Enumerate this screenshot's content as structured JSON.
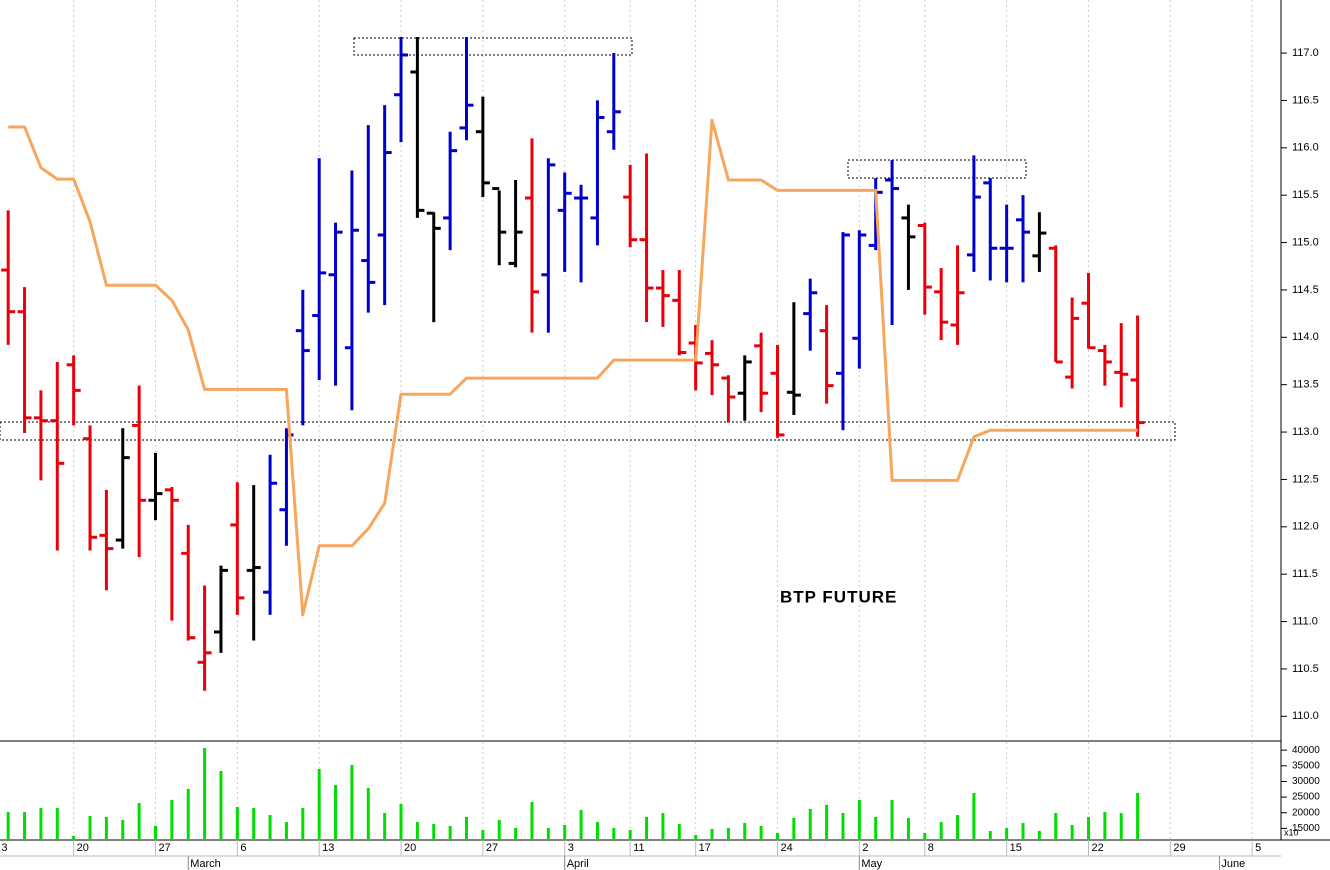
{
  "chart_data": [
    {
      "type": "ohlc",
      "annotation": "BTP FUTURE",
      "x": [
        0,
        1,
        2,
        3,
        4,
        5,
        6,
        7,
        8,
        9,
        10,
        11,
        12,
        13,
        14,
        15,
        16,
        17,
        18,
        19,
        20,
        21,
        22,
        23,
        24,
        25,
        26,
        27,
        28,
        29,
        30,
        31,
        32,
        33,
        34,
        35,
        36,
        37,
        38,
        39,
        40,
        41,
        42,
        43,
        44,
        45,
        46,
        47,
        48,
        49,
        50,
        51,
        52,
        53,
        54,
        55,
        56,
        57,
        58,
        59,
        60,
        61,
        62,
        63,
        64,
        65,
        66,
        67,
        68,
        69
      ],
      "open": [
        114.71,
        114.27,
        113.15,
        113.12,
        113.71,
        112.93,
        111.91,
        111.86,
        113.07,
        112.28,
        112.39,
        111.72,
        110.57,
        110.89,
        112.02,
        111.54,
        111.31,
        112.18,
        114.07,
        114.23,
        114.66,
        113.89,
        114.81,
        115.08,
        116.56,
        116.8,
        115.31,
        115.26,
        116.21,
        116.17,
        115.57,
        114.78,
        115.47,
        114.66,
        115.34,
        115.47,
        115.26,
        116.17,
        115.48,
        115.03,
        114.52,
        114.39,
        113.94,
        113.83,
        113.57,
        113.41,
        113.91,
        113.62,
        113.42,
        114.25,
        114.07,
        113.62,
        113.99,
        114.97,
        115.66,
        115.26,
        115.18,
        114.48,
        114.13,
        114.87,
        115.63,
        114.94,
        115.24,
        114.86,
        114.94,
        113.58,
        114.36,
        113.86,
        113.63,
        113.55
      ],
      "high": [
        115.34,
        114.53,
        113.44,
        113.74,
        113.81,
        113.07,
        112.39,
        113.04,
        113.49,
        112.78,
        112.42,
        112.02,
        111.38,
        111.59,
        112.47,
        112.44,
        112.76,
        113.04,
        114.5,
        115.89,
        115.21,
        115.76,
        116.24,
        116.45,
        117.17,
        117.17,
        115.32,
        116.17,
        117.17,
        116.54,
        115.55,
        115.66,
        116.1,
        115.89,
        115.74,
        115.61,
        116.5,
        117.0,
        115.82,
        115.94,
        114.71,
        114.71,
        114.13,
        113.97,
        113.6,
        113.81,
        114.05,
        113.92,
        114.37,
        114.62,
        114.34,
        115.11,
        115.13,
        115.68,
        115.87,
        115.4,
        115.21,
        114.73,
        114.97,
        115.92,
        115.68,
        115.4,
        115.5,
        115.32,
        114.97,
        114.42,
        114.68,
        113.92,
        114.15,
        114.23
      ],
      "low": [
        113.92,
        112.99,
        112.49,
        111.75,
        113.07,
        111.75,
        111.33,
        111.77,
        111.68,
        112.07,
        111.01,
        110.8,
        110.27,
        110.67,
        111.07,
        110.8,
        111.07,
        111.8,
        113.07,
        113.55,
        113.49,
        113.23,
        114.26,
        114.34,
        116.06,
        115.26,
        114.16,
        114.92,
        116.08,
        115.48,
        114.76,
        114.74,
        114.05,
        114.05,
        114.69,
        114.58,
        114.97,
        115.98,
        114.95,
        114.16,
        114.11,
        113.81,
        113.44,
        113.39,
        113.1,
        113.12,
        113.21,
        112.94,
        113.18,
        113.86,
        113.3,
        113.02,
        113.67,
        114.92,
        114.13,
        114.5,
        114.24,
        113.97,
        113.92,
        114.69,
        114.6,
        114.58,
        114.58,
        114.69,
        113.74,
        113.46,
        113.88,
        113.49,
        113.26,
        112.95
      ],
      "close": [
        114.27,
        113.15,
        113.12,
        112.67,
        113.44,
        111.89,
        111.77,
        112.73,
        112.28,
        112.35,
        112.28,
        110.83,
        110.67,
        111.54,
        111.25,
        111.57,
        112.46,
        112.97,
        113.86,
        114.68,
        115.11,
        115.13,
        114.58,
        115.95,
        116.98,
        115.34,
        115.15,
        115.97,
        116.45,
        115.63,
        115.11,
        115.11,
        114.48,
        115.82,
        115.52,
        115.47,
        116.32,
        116.38,
        115.03,
        114.52,
        114.44,
        113.84,
        113.73,
        113.71,
        113.37,
        113.74,
        113.41,
        112.97,
        113.39,
        114.47,
        113.49,
        115.08,
        115.08,
        115.53,
        115.57,
        115.06,
        114.53,
        114.16,
        114.47,
        115.48,
        114.94,
        114.94,
        115.11,
        115.1,
        113.74,
        114.2,
        113.89,
        113.74,
        113.61,
        113.1
      ],
      "colors": [
        "#e8000b",
        "#e8000b",
        "#e8000b",
        "#e8000b",
        "#e8000b",
        "#e8000b",
        "#e8000b",
        "#000000",
        "#e8000b",
        "#000000",
        "#e8000b",
        "#e8000b",
        "#e8000b",
        "#000000",
        "#e8000b",
        "#000000",
        "#0000cc",
        "#0000cc",
        "#0000cc",
        "#0000cc",
        "#0000cc",
        "#0000cc",
        "#0000cc",
        "#0000cc",
        "#0000cc",
        "#000000",
        "#000000",
        "#0000cc",
        "#0000cc",
        "#000000",
        "#000000",
        "#000000",
        "#e8000b",
        "#0000cc",
        "#0000cc",
        "#0000cc",
        "#0000cc",
        "#0000cc",
        "#e8000b",
        "#e8000b",
        "#e8000b",
        "#e8000b",
        "#e8000b",
        "#e8000b",
        "#e8000b",
        "#000000",
        "#e8000b",
        "#e8000b",
        "#000000",
        "#0000cc",
        "#e8000b",
        "#0000cc",
        "#0000cc",
        "#0000cc",
        "#0000cc",
        "#000000",
        "#e8000b",
        "#e8000b",
        "#e8000b",
        "#0000cc",
        "#0000cc",
        "#0000cc",
        "#0000cc",
        "#000000",
        "#e8000b",
        "#e8000b",
        "#e8000b",
        "#e8000b",
        "#e8000b",
        "#e8000b"
      ],
      "line": {
        "color": "#f7a65e",
        "values": [
          116.22,
          116.22,
          115.79,
          115.67,
          115.67,
          115.22,
          114.55,
          114.55,
          114.55,
          114.55,
          114.39,
          114.08,
          113.45,
          113.45,
          113.45,
          113.45,
          113.45,
          113.45,
          111.07,
          111.8,
          111.8,
          111.8,
          111.98,
          112.25,
          113.4,
          113.4,
          113.4,
          113.4,
          113.57,
          113.57,
          113.57,
          113.57,
          113.57,
          113.57,
          113.57,
          113.57,
          113.57,
          113.76,
          113.76,
          113.76,
          113.76,
          113.76,
          113.76,
          116.29,
          115.66,
          115.66,
          115.66,
          115.55,
          115.55,
          115.55,
          115.55,
          115.55,
          115.55,
          115.55,
          112.49,
          112.49,
          112.49,
          112.49,
          112.49,
          112.95,
          113.02,
          113.02,
          113.02,
          113.02,
          113.02,
          113.02,
          113.02,
          113.02,
          113.02,
          113.02
        ]
      },
      "xlim": [
        -0.5,
        77.7
      ],
      "ylim": [
        109.75,
        117.56
      ],
      "yticks": [
        {
          "value": 110.0,
          "label": "110.0"
        },
        {
          "value": 110.5,
          "label": "110.5"
        },
        {
          "value": 111.0,
          "label": "111.0"
        },
        {
          "value": 111.5,
          "label": "111.5"
        },
        {
          "value": 112.0,
          "label": "112.0"
        },
        {
          "value": 112.5,
          "label": "112.5"
        },
        {
          "value": 113.0,
          "label": "113.0"
        },
        {
          "value": 113.5,
          "label": "113.5"
        },
        {
          "value": 114.0,
          "label": "114.0"
        },
        {
          "value": 114.5,
          "label": "114.5"
        },
        {
          "value": 115.0,
          "label": "115.0"
        },
        {
          "value": 115.5,
          "label": "115.5"
        },
        {
          "value": 116.0,
          "label": "116.0"
        },
        {
          "value": 116.5,
          "label": "116.5"
        },
        {
          "value": 117.0,
          "label": "117.0"
        }
      ],
      "grid": true
    },
    {
      "type": "bar",
      "multiplier_label": "x10",
      "x": [
        0,
        1,
        2,
        3,
        4,
        5,
        6,
        7,
        8,
        9,
        10,
        11,
        12,
        13,
        14,
        15,
        16,
        17,
        18,
        19,
        20,
        21,
        22,
        23,
        24,
        25,
        26,
        27,
        28,
        29,
        30,
        31,
        32,
        33,
        34,
        35,
        36,
        37,
        38,
        39,
        40,
        41,
        42,
        43,
        44,
        45,
        46,
        47,
        48,
        49,
        50,
        51,
        52,
        53,
        54,
        55,
        56,
        57,
        58,
        59,
        60,
        61,
        62,
        63,
        64,
        65,
        66,
        67,
        68,
        69
      ],
      "values": [
        20240,
        20240,
        21520,
        21520,
        12580,
        18970,
        18650,
        17690,
        23120,
        15770,
        24080,
        27590,
        40680,
        33340,
        21840,
        21520,
        19280,
        17050,
        21520,
        33980,
        28870,
        35250,
        27910,
        19920,
        22800,
        17050,
        16410,
        15770,
        18650,
        14490,
        17690,
        15130,
        23440,
        15130,
        16090,
        20880,
        17050,
        15130,
        14490,
        18650,
        19920,
        16410,
        12900,
        14810,
        15130,
        16730,
        15770,
        13540,
        18330,
        21200,
        22480,
        19920,
        24080,
        18650,
        24080,
        18330,
        13540,
        17050,
        19280,
        26310,
        14170,
        15130,
        16730,
        14170,
        19920,
        16090,
        18650,
        20240,
        19920,
        26310
      ],
      "color": "#00dd00",
      "xlim": [
        -0.5,
        77.7
      ],
      "ylim": [
        11300,
        42600
      ],
      "yticks": [
        15000,
        20000,
        25000,
        30000,
        35000,
        40000
      ],
      "xticks": [
        {
          "value": -0.6,
          "label": "3"
        },
        {
          "value": 4,
          "label": "20"
        },
        {
          "value": 9,
          "label": "27"
        },
        {
          "value": 14,
          "label": "6"
        },
        {
          "value": 19,
          "label": "13"
        },
        {
          "value": 24,
          "label": "20"
        },
        {
          "value": 29,
          "label": "27"
        },
        {
          "value": 34,
          "label": "3"
        },
        {
          "value": 38,
          "label": "11"
        },
        {
          "value": 42,
          "label": "17"
        },
        {
          "value": 47,
          "label": "24"
        },
        {
          "value": 52,
          "label": "2"
        },
        {
          "value": 56,
          "label": "8"
        },
        {
          "value": 61,
          "label": "15"
        },
        {
          "value": 66,
          "label": "22"
        },
        {
          "value": 71,
          "label": "29"
        },
        {
          "value": 76,
          "label": "5"
        }
      ],
      "month_ticks": [
        {
          "value": 11,
          "label": "March"
        },
        {
          "value": 34,
          "label": "April"
        },
        {
          "value": 52,
          "label": "May"
        },
        {
          "value": 74,
          "label": "June"
        }
      ],
      "grid": true
    }
  ]
}
